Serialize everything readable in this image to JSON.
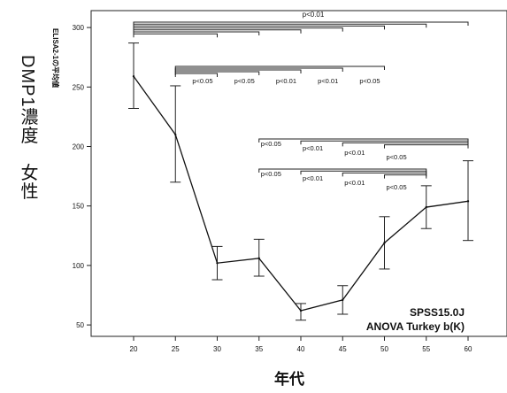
{
  "chart_data": {
    "type": "line",
    "title": "",
    "side_title": "DMP1濃度　女性",
    "xlabel": "年代",
    "ylabel": "ELISA2-1の平均値",
    "x": [
      20,
      25,
      30,
      35,
      40,
      45,
      50,
      55,
      60
    ],
    "series": [
      {
        "values": [
          259,
          210,
          102,
          106,
          62,
          71,
          119,
          149,
          154
        ],
        "err_upper": [
          287,
          251,
          116,
          122,
          68,
          83,
          141,
          167,
          188
        ],
        "err_lower": [
          232,
          170,
          88,
          91,
          54,
          59,
          97,
          131,
          121
        ]
      }
    ],
    "xlim": [
      15,
      65
    ],
    "ylim": [
      35,
      310
    ],
    "xticks": [
      "20",
      "25",
      "30",
      "35",
      "40",
      "45",
      "50",
      "55",
      "60"
    ],
    "yticks": [
      "50",
      "100",
      "150",
      "200",
      "250",
      "300"
    ],
    "notes": [
      "SPSS15.0J",
      "ANOVA  Turkey b(K)"
    ],
    "significance": [
      {
        "group": "top",
        "label": "p<0.01",
        "from": 20,
        "to": [
          30,
          35,
          40,
          45,
          50,
          55,
          60
        ]
      },
      {
        "group": "second",
        "from": 25,
        "to": [
          30,
          35,
          40,
          45,
          50
        ],
        "labels": [
          "p<0.05",
          "p<0.05",
          "p<0.01",
          "p<0.01",
          "p<0.05"
        ]
      },
      {
        "group": "upper-right",
        "from": [
          35,
          40,
          45,
          50
        ],
        "to": 60,
        "labels": [
          "p<0.05",
          "p<0.01",
          "p<0.01",
          "p<0.05"
        ]
      },
      {
        "group": "lower-right",
        "from": [
          35,
          40,
          45,
          50
        ],
        "to": 55,
        "labels": [
          "p<0.05",
          "p<0.01",
          "p<0.01",
          "p<0.05"
        ]
      }
    ]
  }
}
